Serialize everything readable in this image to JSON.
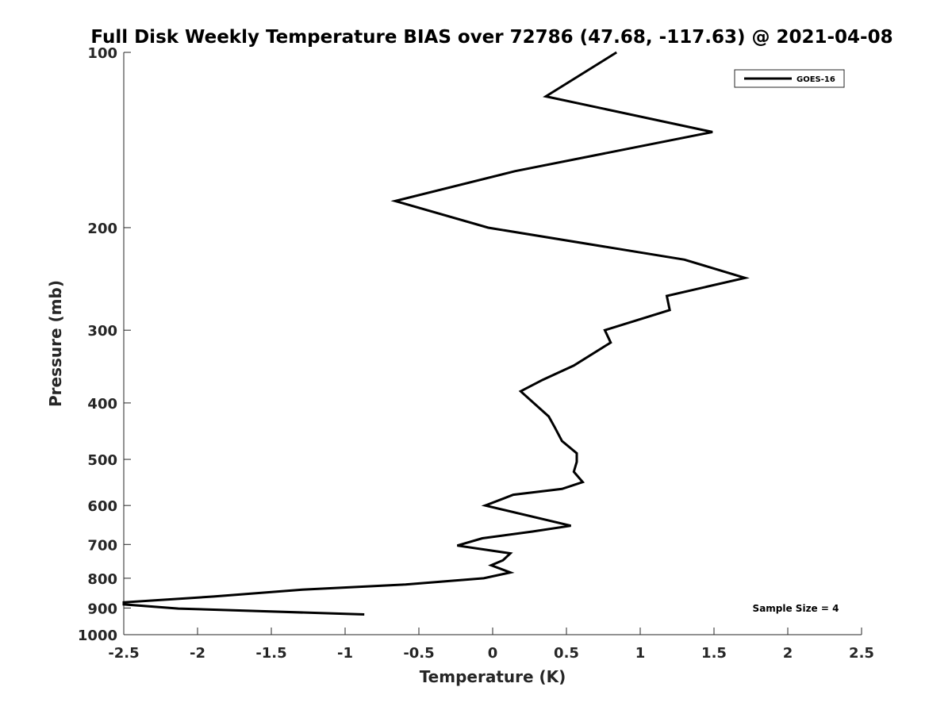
{
  "chart_data": {
    "type": "line",
    "title": "Full Disk Weekly Temperature BIAS over 72786 (47.68, -117.63) @ 2021-04-08",
    "xlabel": "Temperature (K)",
    "ylabel": "Pressure (mb)",
    "xlim": [
      -2.5,
      2.5
    ],
    "ylim": [
      1000,
      100
    ],
    "yscale": "log",
    "y_reversed": true,
    "x_ticks": [
      "-2.5",
      "-2",
      "-1.5",
      "-1",
      "-0.5",
      "0",
      "0.5",
      "1",
      "1.5",
      "2",
      "2.5"
    ],
    "y_ticks": [
      "100",
      "200",
      "300",
      "400",
      "500",
      "600",
      "700",
      "800",
      "900",
      "1000"
    ],
    "grid": false,
    "legend_position": "top-right",
    "series": [
      {
        "name": "GOES-16",
        "color": "#000000",
        "points": [
          {
            "x": 0.84,
            "y": 100
          },
          {
            "x": 0.36,
            "y": 119
          },
          {
            "x": 1.49,
            "y": 137
          },
          {
            "x": 0.15,
            "y": 160
          },
          {
            "x": -0.66,
            "y": 180
          },
          {
            "x": -0.03,
            "y": 200
          },
          {
            "x": 1.3,
            "y": 227
          },
          {
            "x": 1.71,
            "y": 244
          },
          {
            "x": 1.18,
            "y": 262
          },
          {
            "x": 1.2,
            "y": 277
          },
          {
            "x": 0.76,
            "y": 300
          },
          {
            "x": 0.8,
            "y": 315
          },
          {
            "x": 0.55,
            "y": 345
          },
          {
            "x": 0.34,
            "y": 365
          },
          {
            "x": 0.19,
            "y": 382
          },
          {
            "x": 0.38,
            "y": 422
          },
          {
            "x": 0.42,
            "y": 440
          },
          {
            "x": 0.47,
            "y": 465
          },
          {
            "x": 0.57,
            "y": 488
          },
          {
            "x": 0.57,
            "y": 505
          },
          {
            "x": 0.55,
            "y": 525
          },
          {
            "x": 0.61,
            "y": 547
          },
          {
            "x": 0.47,
            "y": 562
          },
          {
            "x": 0.14,
            "y": 575
          },
          {
            "x": -0.05,
            "y": 600
          },
          {
            "x": 0.53,
            "y": 650
          },
          {
            "x": 0.27,
            "y": 665
          },
          {
            "x": -0.07,
            "y": 683
          },
          {
            "x": -0.24,
            "y": 703
          },
          {
            "x": 0.12,
            "y": 725
          },
          {
            "x": 0.07,
            "y": 745
          },
          {
            "x": -0.01,
            "y": 760
          },
          {
            "x": 0.12,
            "y": 782
          },
          {
            "x": -0.06,
            "y": 800
          },
          {
            "x": -0.59,
            "y": 820
          },
          {
            "x": -1.29,
            "y": 837
          },
          {
            "x": -1.89,
            "y": 860
          },
          {
            "x": -2.5,
            "y": 880
          },
          {
            "x": -2.5,
            "y": 887
          },
          {
            "x": -2.13,
            "y": 902
          },
          {
            "x": -0.87,
            "y": 923
          }
        ]
      }
    ],
    "annotation": "Sample Size = 4"
  }
}
